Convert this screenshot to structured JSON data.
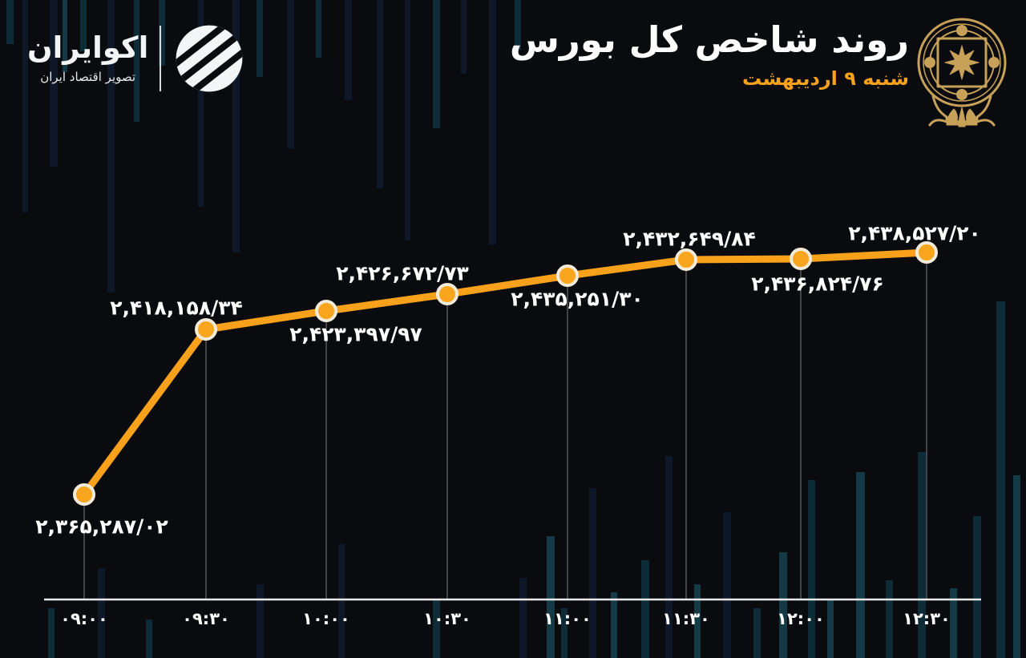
{
  "brand": {
    "name": "اکوایران",
    "tagline": "تصویر اقتصاد ایران"
  },
  "chart_data": {
    "type": "line",
    "title": "روند شاخص کل بورس",
    "subtitle": "شنبه ۹ اردیبهشت",
    "xlabel": "",
    "ylabel": "",
    "categories": [
      "۰۹:۰۰",
      "۰۹:۳۰",
      "۱۰:۰۰",
      "۱۰:۳۰",
      "۱۱:۰۰",
      "۱۱:۳۰",
      "۱۲:۰۰",
      "۱۲:۳۰"
    ],
    "categories_latin": [
      "09:00",
      "09:30",
      "10:00",
      "10:30",
      "11:00",
      "11:30",
      "12:00",
      "12:30"
    ],
    "values": [
      2365287.02,
      2418158.34,
      2423397.97,
      2426672.73,
      2435251.3,
      2432649.84,
      2436824.76,
      2438527.2
    ],
    "value_labels": [
      "۲,۳۶۵,۲۸۷/۰۲",
      "۲,۴۱۸,۱۵۸/۳۴",
      "۲,۴۲۳,۳۹۷/۹۷",
      "۲,۴۲۶,۶۷۲/۷۳",
      "۲,۴۳۵,۲۵۱/۳۰",
      "۲,۴۳۲,۶۴۹/۸۴",
      "۲,۴۳۶,۸۲۴/۷۶",
      "۲,۴۳۸,۵۲۷/۲۰"
    ],
    "label_position": [
      "below",
      "above",
      "below",
      "above",
      "below",
      "above",
      "below",
      "above"
    ],
    "grid": false,
    "legend": false,
    "line_color": "#F9A11B",
    "marker_fill": "#F9A51D",
    "marker_stroke": "#F3EBD9",
    "axis_color": "#E9E9E9",
    "drop_line_color": "#6B6B6B",
    "label_color": "#FFFFFF",
    "accent_color": "#F9A11B",
    "emblem_color": "#C8A158",
    "background_color": "#0A0B0F"
  }
}
